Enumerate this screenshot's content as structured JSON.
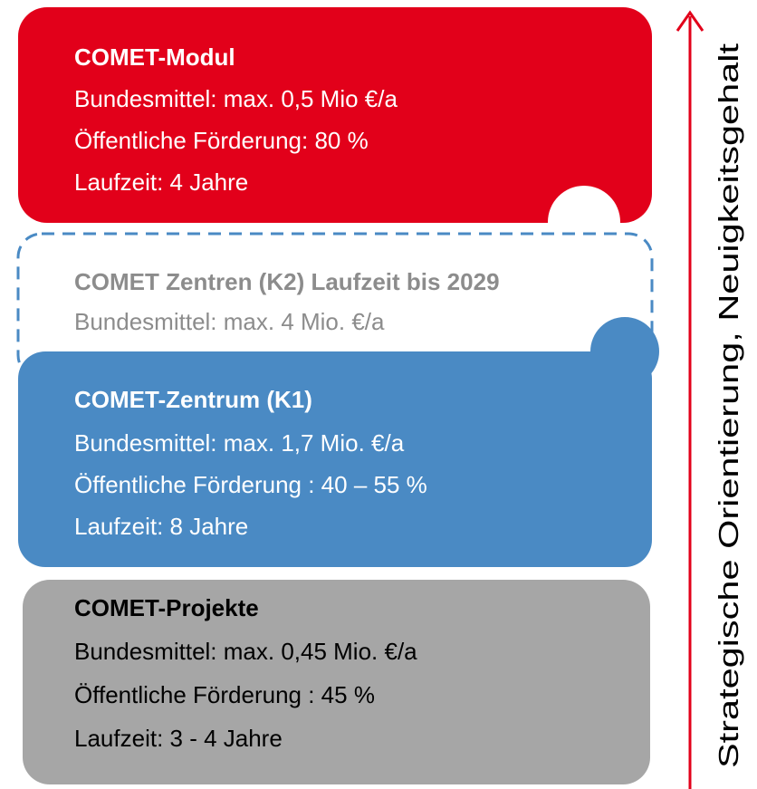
{
  "blocks": [
    {
      "title": "COMET-Modul",
      "lines": [
        "Bundesmittel: max. 0,5 Mio €/a",
        "Öffentliche Förderung: 80 %",
        "Laufzeit: 4 Jahre"
      ]
    },
    {
      "title": "COMET Zentren (K2) Laufzeit bis 2029",
      "lines": [
        "Bundesmittel: max. 4 Mio. €/a"
      ]
    },
    {
      "title": "COMET-Zentrum (K1)",
      "lines": [
        "Bundesmittel: max. 1,7 Mio. €/a",
        "Öffentliche Förderung : 40 – 55 %",
        "Laufzeit: 8 Jahre"
      ]
    },
    {
      "title": "COMET-Projekte",
      "lines": [
        "Bundesmittel: max. 0,45 Mio. €/a",
        "Öffentliche Förderung : 45 %",
        "Laufzeit: 3 - 4 Jahre"
      ]
    }
  ],
  "axis_label": "Strategische Orientierung, Neuigkeitsgehalt"
}
